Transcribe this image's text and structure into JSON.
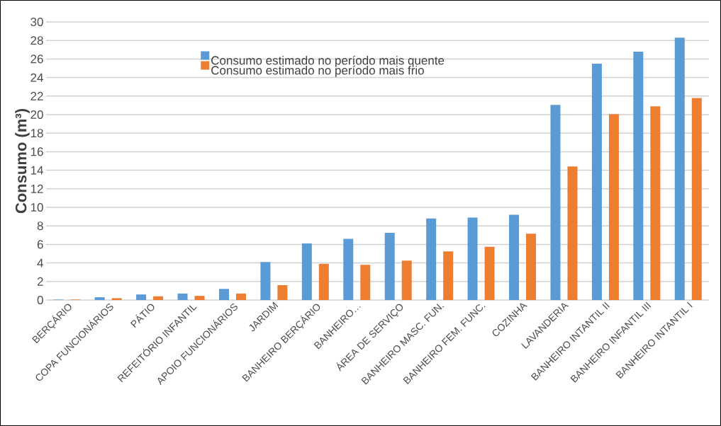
{
  "chart_data": {
    "type": "bar",
    "ylabel": "Consumo (m³)",
    "categories": [
      "BERÇÁRIO",
      "COPA  FUNCIONÁRIOS",
      "PÁTIO",
      "REFEITÓRIO INFANTIL",
      "APOIO FUNCIONÁRIOS",
      "JARDIM",
      "BANHEIRO BERÇÁRIO",
      "BANHEIRO…",
      "ÁREA DE SERVIÇO",
      "BANHEIRO MASC. FUN.",
      "BANHEIRO FEM. FUNC.",
      "COZINHA",
      "LAVANDERIA",
      "BANHEIRO INTANTIL II",
      "BANHEIRO INFANTIL III",
      "BANHEIRO INTANTIL I"
    ],
    "series": [
      {
        "name": "Consumo estimado no período mais quente",
        "color": "#5b9bd5",
        "values": [
          0.05,
          0.3,
          0.6,
          0.7,
          1.2,
          4.1,
          6.1,
          6.6,
          7.25,
          8.8,
          8.9,
          9.2,
          21.05,
          25.5,
          26.8,
          28.3
        ]
      },
      {
        "name": "Consumo estimado no período mais frio",
        "color": "#ed7d31",
        "values": [
          0.05,
          0.2,
          0.4,
          0.45,
          0.7,
          1.6,
          3.9,
          3.8,
          4.25,
          5.25,
          5.75,
          7.15,
          14.4,
          20.05,
          20.9,
          21.8
        ]
      }
    ],
    "ylim": [
      0,
      30
    ],
    "yticks": [
      0,
      2,
      4,
      6,
      8,
      10,
      12,
      14,
      16,
      18,
      20,
      22,
      24,
      26,
      28,
      30
    ],
    "grid": "y",
    "legend": "top"
  }
}
